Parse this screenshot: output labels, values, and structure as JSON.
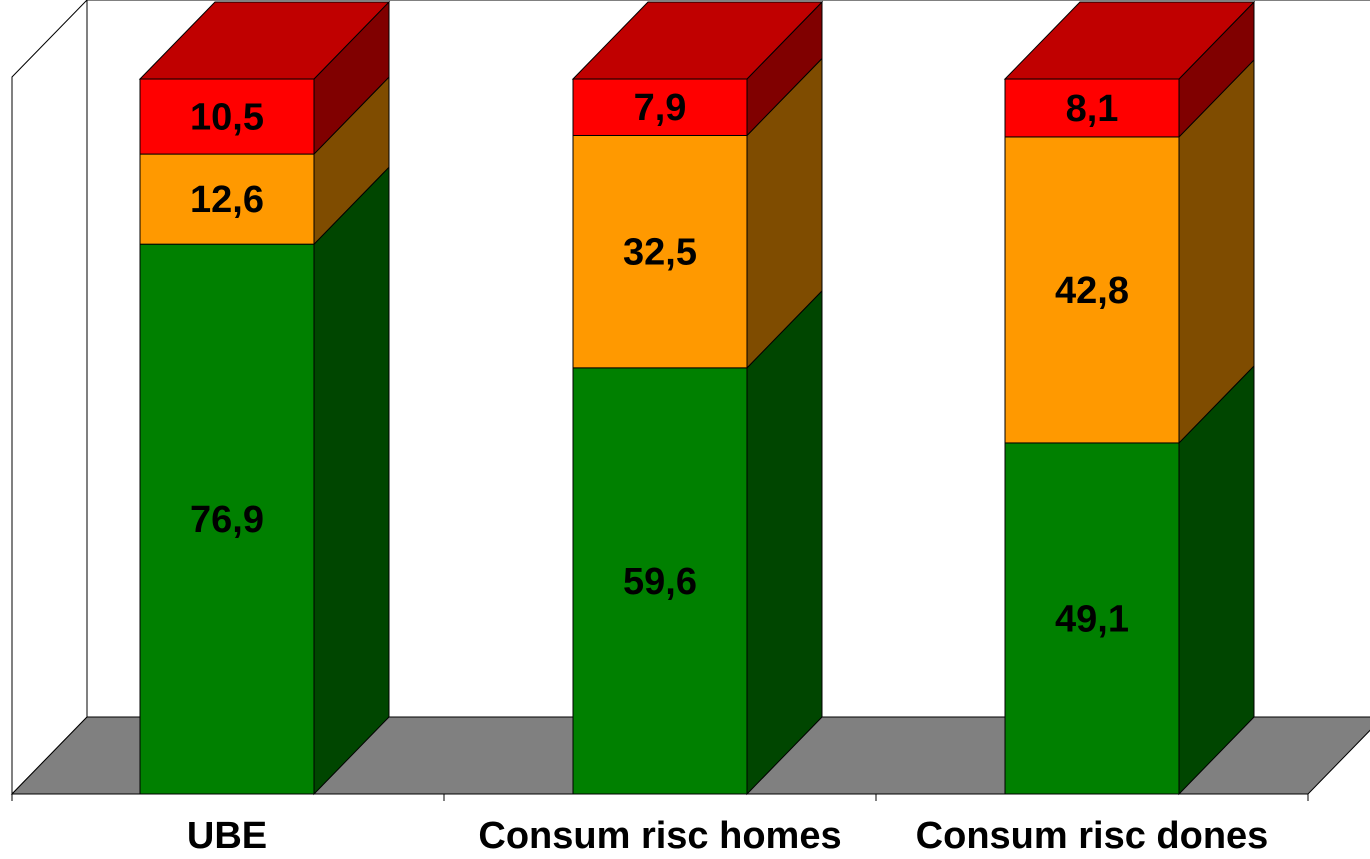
{
  "chart_data": {
    "type": "bar",
    "stacked": true,
    "three_d": true,
    "categories": [
      "UBE",
      "Consum risc homes",
      "Consum risc dones"
    ],
    "series": [
      {
        "values": [
          76.9,
          59.6,
          49.1
        ],
        "labels": [
          "76,9",
          "59,6",
          "49,1"
        ],
        "color": "#008000",
        "side_color": "#004600"
      },
      {
        "values": [
          12.6,
          32.5,
          42.8
        ],
        "labels": [
          "12,6",
          "32,5",
          "42,8"
        ],
        "color": "#FF9900",
        "side_color": "#7F4C00"
      },
      {
        "values": [
          10.5,
          7.9,
          8.1
        ],
        "labels": [
          "10,5",
          "7,9",
          "8,1"
        ],
        "color": "#FF0000",
        "top_color": "#C00000",
        "side_color": "#800000"
      }
    ],
    "ylim": [
      0,
      100
    ],
    "floor_color": "#808080",
    "grid": false,
    "legend": "none"
  }
}
